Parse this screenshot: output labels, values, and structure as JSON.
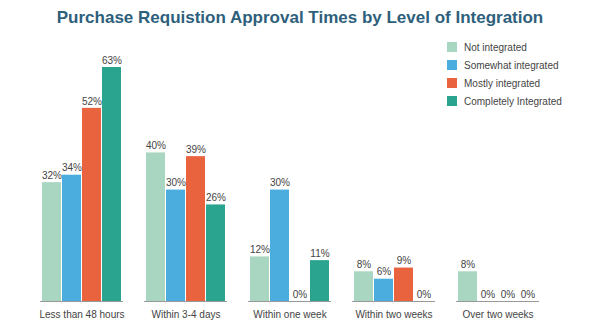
{
  "chart_data": {
    "type": "bar",
    "title": "Purchase Requistion Approval Times by Level of Integration",
    "categories": [
      "Less than 48 hours",
      "Within 3-4 days",
      "Within one week",
      "Within two weeks",
      "Over two weeks"
    ],
    "series": [
      {
        "name": "Not integrated",
        "color": "#a9d6c1",
        "values": [
          32,
          40,
          12,
          8,
          8
        ],
        "value_labels": [
          "32%",
          "40%",
          "12%",
          "8%",
          "8%"
        ]
      },
      {
        "name": "Somewhat integrated",
        "color": "#4badde",
        "values": [
          34,
          30,
          30,
          6,
          0
        ],
        "value_labels": [
          "34%",
          "30%",
          "30%",
          "6%",
          "0%"
        ]
      },
      {
        "name": "Mostly integrated",
        "color": "#e8633e",
        "values": [
          52,
          39,
          0,
          9,
          0
        ],
        "value_labels": [
          "52%",
          "39%",
          "0%",
          "9%",
          "0%"
        ]
      },
      {
        "name": "Completely Integrated",
        "color": "#2aa38f",
        "values": [
          63,
          26,
          11,
          0,
          0
        ],
        "value_labels": [
          "63%",
          "26%",
          "11%",
          "0%",
          "0%"
        ]
      }
    ],
    "ylim": [
      0,
      70
    ],
    "data_labels": true,
    "tick_labels": "x",
    "legend": "top-right"
  }
}
